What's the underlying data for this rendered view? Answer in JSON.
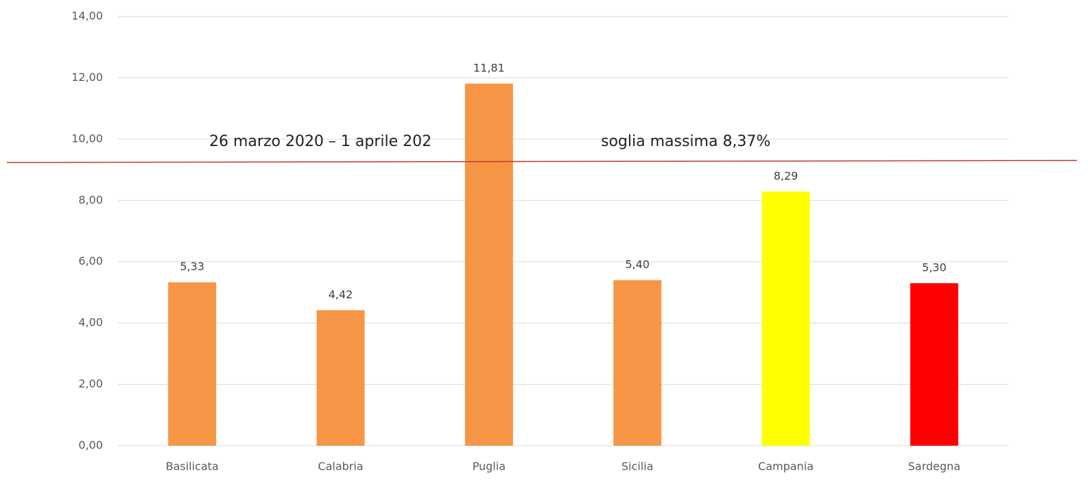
{
  "chart_data": {
    "type": "bar",
    "categories": [
      "Basilicata",
      "Calabria",
      "Puglia",
      "Sicilia",
      "Campania",
      "Sardegna"
    ],
    "values": [
      5.33,
      4.42,
      11.81,
      5.4,
      8.29,
      5.3
    ],
    "value_labels": [
      "5,33",
      "4,42",
      "11,81",
      "5,40",
      "8,29",
      "5,30"
    ],
    "colors": [
      "#f79646",
      "#f79646",
      "#f79646",
      "#f79646",
      "#ffff00",
      "#ff0000"
    ],
    "annotations": [
      "26 marzo 2020 – 1 aprile 202",
      "soglia massima 8,37%"
    ],
    "ylim": [
      0,
      14
    ],
    "yticks": [
      {
        "value": 0,
        "label": "0,00"
      },
      {
        "value": 2,
        "label": "2,00"
      },
      {
        "value": 4,
        "label": "4,00"
      },
      {
        "value": 6,
        "label": "6,00"
      },
      {
        "value": 8,
        "label": "8,00"
      },
      {
        "value": 10,
        "label": "10,00"
      },
      {
        "value": 12,
        "label": "12,00"
      },
      {
        "value": 14,
        "label": "14,00"
      }
    ],
    "grid": true
  }
}
